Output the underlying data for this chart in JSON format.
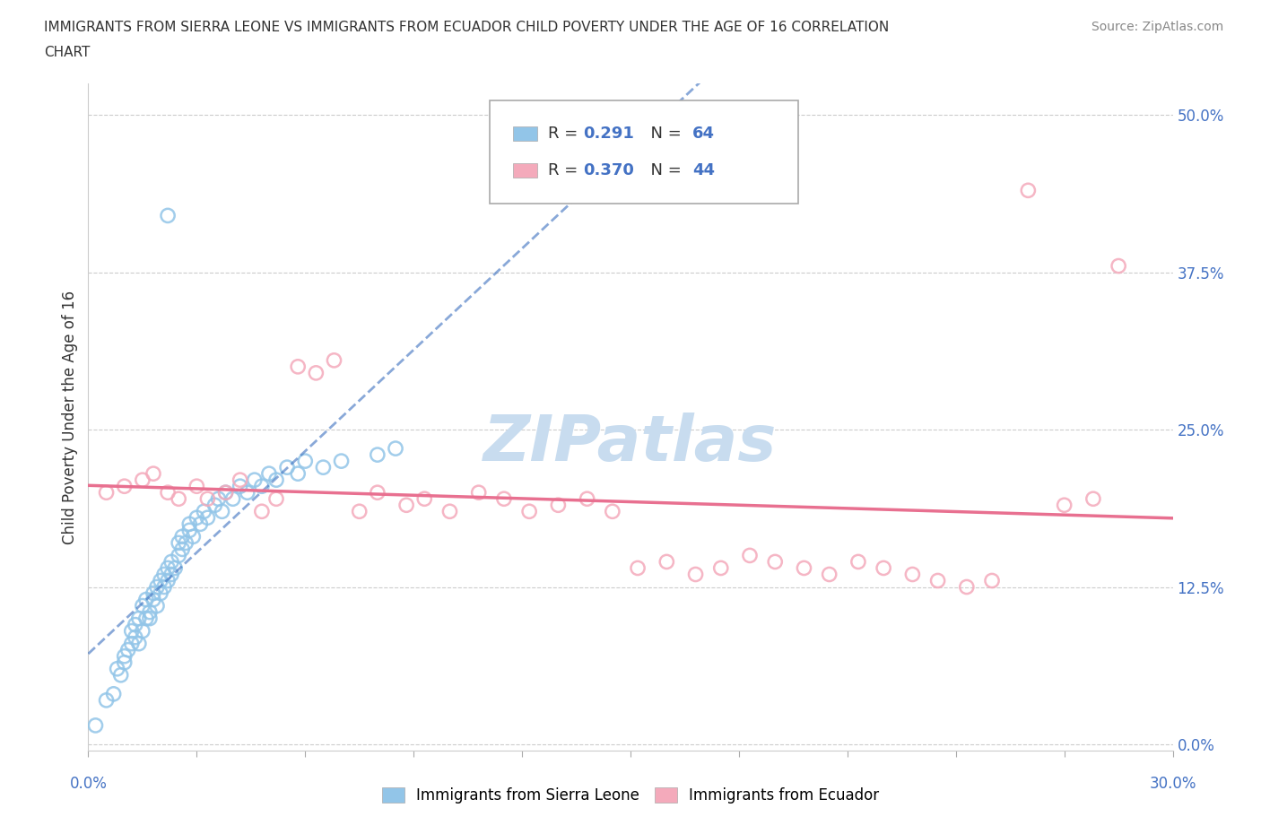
{
  "title": "IMMIGRANTS FROM SIERRA LEONE VS IMMIGRANTS FROM ECUADOR CHILD POVERTY UNDER THE AGE OF 16 CORRELATION\nCHART",
  "source": "Source: ZipAtlas.com",
  "ylabel": "Child Poverty Under the Age of 16",
  "ytick_labels": [
    "0.0%",
    "12.5%",
    "25.0%",
    "37.5%",
    "50.0%"
  ],
  "ytick_values": [
    0.0,
    0.125,
    0.25,
    0.375,
    0.5
  ],
  "xlim": [
    0.0,
    0.3
  ],
  "ylim": [
    -0.005,
    0.525
  ],
  "R_sierra": 0.291,
  "N_sierra": 64,
  "R_ecuador": 0.37,
  "N_ecuador": 44,
  "color_sierra": "#92C5E8",
  "color_ecuador": "#F4AABB",
  "trendline_sierra_color": "#3A6FBF",
  "trendline_ecuador_color": "#E87090",
  "watermark_color": "#C8DCEF",
  "legend_label_sierra": "Immigrants from Sierra Leone",
  "legend_label_ecuador": "Immigrants from Ecuador",
  "sierra_x": [
    0.002,
    0.005,
    0.007,
    0.008,
    0.009,
    0.01,
    0.01,
    0.011,
    0.012,
    0.012,
    0.013,
    0.013,
    0.014,
    0.014,
    0.015,
    0.015,
    0.016,
    0.016,
    0.017,
    0.017,
    0.018,
    0.018,
    0.019,
    0.019,
    0.02,
    0.02,
    0.021,
    0.021,
    0.022,
    0.022,
    0.023,
    0.023,
    0.024,
    0.025,
    0.025,
    0.026,
    0.026,
    0.027,
    0.028,
    0.028,
    0.029,
    0.03,
    0.031,
    0.032,
    0.033,
    0.035,
    0.036,
    0.037,
    0.038,
    0.04,
    0.042,
    0.044,
    0.046,
    0.048,
    0.05,
    0.052,
    0.055,
    0.058,
    0.06,
    0.065,
    0.07,
    0.08,
    0.085,
    0.022
  ],
  "sierra_y": [
    0.015,
    0.035,
    0.04,
    0.06,
    0.055,
    0.065,
    0.07,
    0.075,
    0.08,
    0.09,
    0.085,
    0.095,
    0.08,
    0.1,
    0.09,
    0.11,
    0.1,
    0.115,
    0.1,
    0.105,
    0.115,
    0.12,
    0.11,
    0.125,
    0.12,
    0.13,
    0.125,
    0.135,
    0.13,
    0.14,
    0.135,
    0.145,
    0.14,
    0.15,
    0.16,
    0.155,
    0.165,
    0.16,
    0.17,
    0.175,
    0.165,
    0.18,
    0.175,
    0.185,
    0.18,
    0.19,
    0.195,
    0.185,
    0.2,
    0.195,
    0.205,
    0.2,
    0.21,
    0.205,
    0.215,
    0.21,
    0.22,
    0.215,
    0.225,
    0.22,
    0.225,
    0.23,
    0.235,
    0.42
  ],
  "ecuador_x": [
    0.005,
    0.01,
    0.015,
    0.018,
    0.022,
    0.025,
    0.03,
    0.033,
    0.038,
    0.042,
    0.048,
    0.052,
    0.058,
    0.063,
    0.068,
    0.075,
    0.08,
    0.088,
    0.093,
    0.1,
    0.108,
    0.115,
    0.122,
    0.13,
    0.138,
    0.145,
    0.152,
    0.16,
    0.168,
    0.175,
    0.183,
    0.19,
    0.198,
    0.205,
    0.213,
    0.22,
    0.228,
    0.235,
    0.243,
    0.25,
    0.26,
    0.27,
    0.278,
    0.285
  ],
  "ecuador_y": [
    0.2,
    0.205,
    0.21,
    0.215,
    0.2,
    0.195,
    0.205,
    0.195,
    0.2,
    0.21,
    0.185,
    0.195,
    0.3,
    0.295,
    0.305,
    0.185,
    0.2,
    0.19,
    0.195,
    0.185,
    0.2,
    0.195,
    0.185,
    0.19,
    0.195,
    0.185,
    0.14,
    0.145,
    0.135,
    0.14,
    0.15,
    0.145,
    0.14,
    0.135,
    0.145,
    0.14,
    0.135,
    0.13,
    0.125,
    0.13,
    0.44,
    0.19,
    0.195,
    0.38
  ]
}
